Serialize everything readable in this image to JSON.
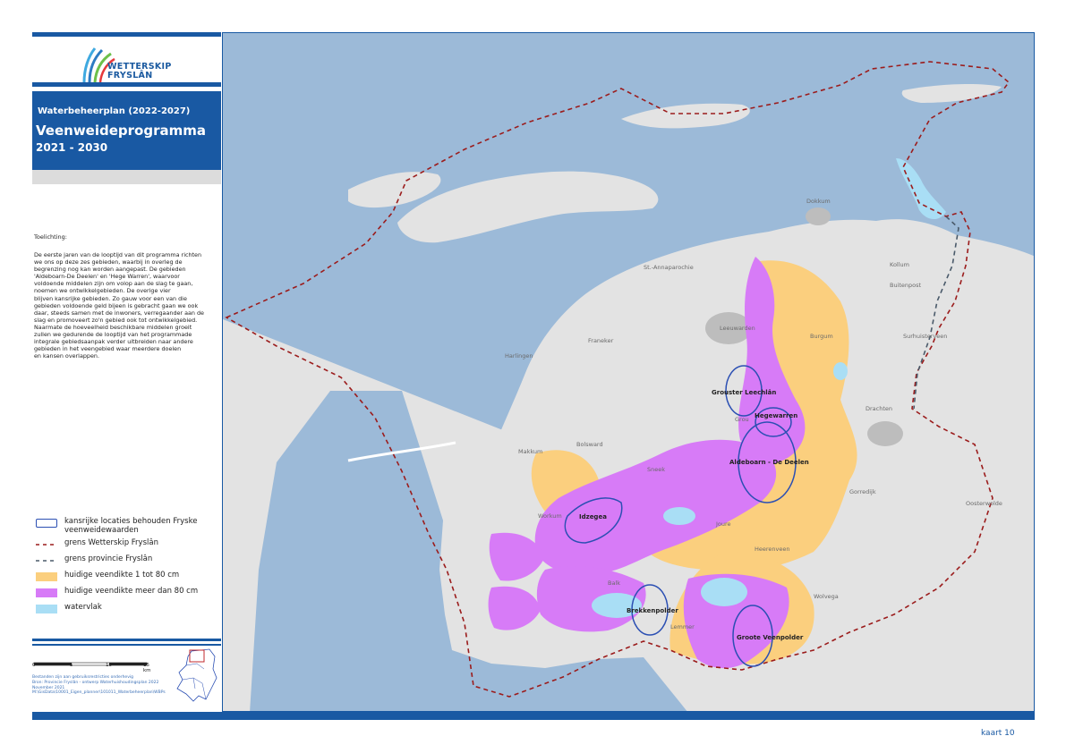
{
  "org": {
    "name_line1": "WETTERSKIP",
    "name_line2": "FRYSLÂN"
  },
  "header": {
    "subtitle": "Waterbeheerplan (2022-2027)",
    "title": "Veenweideprogramma",
    "period": "2021 - 2030"
  },
  "explanation": {
    "heading": "Toelichting:",
    "lines": [
      "De eerste jaren van de looptijd van dit programma richten",
      "we ons op deze zes gebieden, waarbij in overleg de",
      "begrenzing nog kan worden aangepast. De gebieden",
      "'Aldeboarn-De Deelen' en 'Hege Warren', waarvoor",
      "voldoende middelen zijn om volop aan de slag te gaan,",
      "noemen we ontwikkelgebieden. De overige vier",
      "blijven kansrijke gebieden. Zo gauw voor een van die",
      "gebieden voldoende geld bijeen is gebracht gaan we ook",
      "daar, steeds samen met de inwoners, verregaander aan de",
      "slag en promoveert zo'n gebied ook tot ontwikkelgebied.",
      "Naarmate de hoeveelheid beschikbare middelen groeit",
      "zullen we gedurende de looptijd van het programmade",
      "integrale gebiedsaanpak verder uitbreiden naar andere",
      "gebieden in het veengebied waar meerdere doelen",
      "en kansen overlappen."
    ]
  },
  "legend": [
    {
      "label": "kansrijke locaties behouden Fryske veenweidewaarden",
      "color": "#2b4fb3",
      "symbol": "outline"
    },
    {
      "label": "grens Wetterskip Fryslân",
      "color": "#9b1c1c",
      "symbol": "dash"
    },
    {
      "label": "grens provincie Fryslân",
      "color": "#4a5a6a",
      "symbol": "dash"
    },
    {
      "label": "huidige veendikte 1 tot 80 cm",
      "color": "#fbcf7e",
      "symbol": "fill"
    },
    {
      "label": "huidige veendikte meer dan 80 cm",
      "color": "#d77bf7",
      "symbol": "fill"
    },
    {
      "label": "watervlak",
      "color": "#a9def5",
      "symbol": "fill"
    }
  ],
  "scale": {
    "ticks": [
      "0",
      "5",
      "10",
      "15 km"
    ]
  },
  "source": {
    "lines": [
      "Bestanden zijn aan gebruiksrestricties onderhevig",
      "Bron: Provincie Fryslân - ontwerp Waterhuishoudingsplan 2022",
      "November 2021",
      "M:\\GisData\\10001_Eigen_planner\\101011_Waterbeheerplan\\WBPs"
    ]
  },
  "map": {
    "colors": {
      "sea": "#9cbad8",
      "land": "#e3e3e3",
      "urban": "#bdbdbd",
      "peat_thin": "#fbcf7e",
      "peat_thick": "#d77bf7",
      "water": "#a9def5"
    },
    "places": [
      {
        "name": "Dokkum"
      },
      {
        "name": "St.-Annaparochie"
      },
      {
        "name": "Kollum"
      },
      {
        "name": "Buitenpost"
      },
      {
        "name": "Franeker"
      },
      {
        "name": "Leeuwarden"
      },
      {
        "name": "Burgum"
      },
      {
        "name": "Surhuisterveen"
      },
      {
        "name": "Harlingen"
      },
      {
        "name": "Drachten"
      },
      {
        "name": "Bolsward"
      },
      {
        "name": "Makkum"
      },
      {
        "name": "Sneek"
      },
      {
        "name": "Gorredijk"
      },
      {
        "name": "Oosterwolde"
      },
      {
        "name": "Workum"
      },
      {
        "name": "Joure"
      },
      {
        "name": "Heerenveen"
      },
      {
        "name": "Balk"
      },
      {
        "name": "Wolvega"
      },
      {
        "name": "Lemmer"
      },
      {
        "name": "Grou"
      }
    ],
    "zones": [
      {
        "name": "Grouster Leechlân"
      },
      {
        "name": "Hegewarren"
      },
      {
        "name": "Aldeboarn - De Deelen"
      },
      {
        "name": "Idzegea"
      },
      {
        "name": "Brekkenpolder"
      },
      {
        "name": "Groote Veenpolder"
      }
    ]
  },
  "footer": {
    "map_number": "kaart 10"
  }
}
